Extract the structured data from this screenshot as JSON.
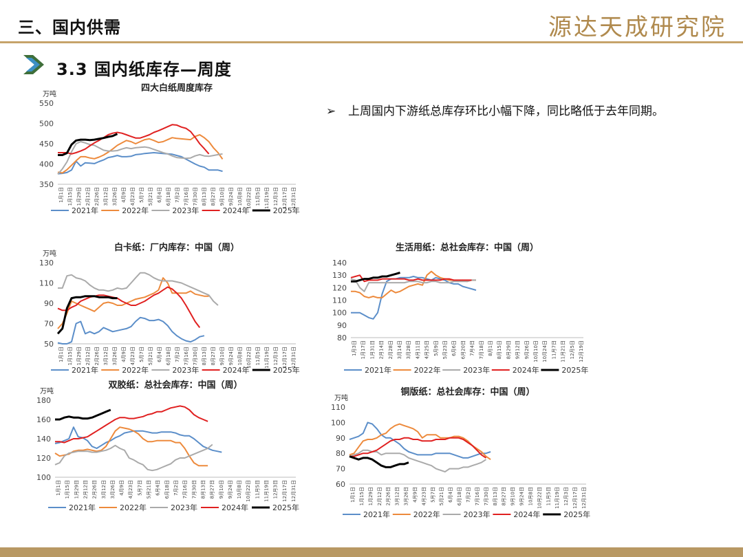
{
  "header": {
    "section_title": "三、国内供需",
    "brand": "源达天成研究院",
    "subtitle": "3.3 国内纸库存—周度"
  },
  "bullet": {
    "mark": "➢",
    "text": "上周国内下游纸总库存环比小幅下降，同比略低于去年同期。"
  },
  "colors": {
    "2021年": "#5b8ec9",
    "2022年": "#ed8a3c",
    "2023年": "#aaaaaa",
    "2024年": "#e02020",
    "2025年": "#000000",
    "accent": "#c6a36a"
  },
  "chart_data": [
    {
      "type": "line",
      "title": "四大白纸周度库存",
      "unit": "万吨",
      "ylim": [
        350,
        550
      ],
      "yticks": [
        350,
        400,
        450,
        500,
        550
      ],
      "xticks": [
        "1月1日",
        "1月15日",
        "1月29日",
        "2月12日",
        "2月26日",
        "3月12日",
        "3月26日",
        "4月9日",
        "4月23日",
        "5月7日",
        "5月21日",
        "6月4日",
        "6月18日",
        "7月2日",
        "7月16日",
        "7月30日",
        "8月13日",
        "8月27日",
        "9月10日",
        "9月24日",
        "10月8日",
        "10月22日",
        "11月5日",
        "11月19日",
        "12月3日",
        "12月17日",
        "12月31日"
      ],
      "series": [
        {
          "name": "2021年",
          "values": [
            376,
            377,
            379,
            385,
            407,
            395,
            403,
            402,
            401,
            406,
            410,
            416,
            418,
            421,
            418,
            418,
            419,
            423,
            424,
            426,
            427,
            428,
            427,
            426,
            425,
            424,
            421,
            418,
            412,
            406,
            400,
            395,
            392,
            385,
            385,
            385,
            382
          ]
        },
        {
          "name": "2022年",
          "values": [
            380,
            378,
            386,
            397,
            408,
            418,
            418,
            415,
            413,
            417,
            422,
            429,
            437,
            446,
            452,
            458,
            455,
            450,
            455,
            460,
            462,
            458,
            453,
            455,
            460,
            465,
            463,
            462,
            461,
            460,
            468,
            472,
            465,
            455,
            440,
            428,
            412
          ]
        },
        {
          "name": "2023年",
          "values": [
            375,
            388,
            405,
            430,
            450,
            455,
            452,
            448,
            446,
            440,
            434,
            432,
            432,
            433,
            437,
            440,
            438,
            440,
            441,
            442,
            440,
            436,
            432,
            428,
            425,
            420,
            416,
            415,
            414,
            415,
            420,
            423,
            420,
            419,
            421,
            423,
            425
          ]
        },
        {
          "name": "2024年",
          "values": [
            428,
            428,
            428,
            425,
            428,
            432,
            437,
            445,
            452,
            458,
            465,
            472,
            476,
            478,
            476,
            472,
            468,
            464,
            464,
            468,
            472,
            478,
            482,
            487,
            492,
            497,
            496,
            491,
            488,
            480,
            466,
            450,
            438,
            425
          ]
        },
        {
          "name": "2025年",
          "values": [
            422,
            422,
            427,
            448,
            458,
            460,
            460,
            459,
            460,
            462,
            464,
            467,
            469,
            474
          ]
        }
      ],
      "legend": "bottom"
    },
    {
      "type": "line",
      "title": "白卡纸：厂内库存：中国（周）",
      "unit": "万吨",
      "ylim": [
        50,
        130
      ],
      "yticks": [
        50,
        70,
        90,
        110,
        130
      ],
      "xticks": [
        "1月1日",
        "1月15日",
        "1月29日",
        "2月12日",
        "2月26日",
        "3月12日",
        "3月26日",
        "4月9日",
        "4月23日",
        "5月7日",
        "5月21日",
        "6月4日",
        "6月18日",
        "7月2日",
        "7月16日",
        "7月30日",
        "8月13日",
        "8月27日",
        "9月10日",
        "9月24日",
        "10月8日",
        "10月22日",
        "11月5日",
        "11月19日",
        "12月3日",
        "12月17日",
        "12月31日"
      ],
      "series": [
        {
          "name": "2021年",
          "values": [
            51,
            50,
            50,
            52,
            70,
            72,
            60,
            62,
            60,
            62,
            66,
            64,
            62,
            63,
            64,
            65,
            67,
            72,
            76,
            75,
            73,
            73,
            74,
            72,
            68,
            62,
            58,
            55,
            53,
            52,
            54,
            57,
            58
          ]
        },
        {
          "name": "2022年",
          "values": [
            65,
            70,
            80,
            92,
            90,
            88,
            86,
            84,
            82,
            86,
            90,
            91,
            90,
            88,
            88,
            90,
            92,
            94,
            95,
            96,
            98,
            100,
            103,
            115,
            110,
            100,
            100,
            100,
            100,
            102,
            99,
            98,
            97,
            97
          ]
        },
        {
          "name": "2023年",
          "values": [
            105,
            105,
            117,
            118,
            115,
            114,
            112,
            108,
            105,
            103,
            103,
            102,
            103,
            105,
            104,
            105,
            110,
            115,
            120,
            120,
            118,
            115,
            113,
            112,
            112,
            112,
            111,
            110,
            108,
            106,
            104,
            102,
            100,
            98,
            92,
            88
          ]
        },
        {
          "name": "2024年",
          "values": [
            85,
            83,
            83,
            86,
            88,
            92,
            94,
            96,
            97,
            98,
            98,
            97,
            96,
            95,
            92,
            90,
            88,
            88,
            90,
            92,
            95,
            98,
            100,
            103,
            106,
            104,
            100,
            95,
            88,
            80,
            72,
            66
          ]
        },
        {
          "name": "2025年",
          "values": [
            60,
            65,
            85,
            95,
            96,
            96,
            97,
            97,
            97,
            96,
            96,
            96,
            95,
            95
          ]
        }
      ],
      "legend": "bottom"
    },
    {
      "type": "line",
      "title": "生活用纸：总社会库存：中国（周）",
      "unit": "",
      "ylim": [
        80,
        140
      ],
      "yticks": [
        80,
        90,
        100,
        110,
        120,
        130,
        140
      ],
      "xticks": [
        "1月3日",
        "1月17日",
        "1月31日",
        "2月14日",
        "2月28日",
        "3月14日",
        "3月28日",
        "4月11日",
        "4月25日",
        "5月9日",
        "5月23日",
        "6月6日",
        "6月20日",
        "7月4日",
        "7月18日",
        "8月1日",
        "8月15日",
        "8月29日",
        "9月12日",
        "9月26日",
        "10月10日",
        "10月24日",
        "11月7日",
        "11月21日",
        "12月5日",
        "12月19日"
      ],
      "series": [
        {
          "name": "2021年",
          "values": [
            100,
            100,
            100,
            98,
            96,
            95,
            100,
            115,
            125,
            127,
            127,
            128,
            128,
            128,
            129,
            128,
            128,
            127,
            126,
            128,
            127,
            126,
            124,
            123,
            123,
            121,
            120,
            119,
            118
          ]
        },
        {
          "name": "2022年",
          "values": [
            117,
            117,
            116,
            113,
            112,
            113,
            112,
            112,
            115,
            118,
            116,
            117,
            119,
            121,
            122,
            123,
            122,
            130,
            133,
            130,
            128,
            127,
            126,
            126,
            125,
            126,
            125,
            126,
            126
          ]
        },
        {
          "name": "2023年",
          "values": [
            127,
            126,
            120,
            117,
            124,
            124,
            124,
            124,
            124,
            124,
            124,
            124,
            124,
            125,
            125,
            125,
            124,
            124,
            125,
            125,
            124,
            124,
            124,
            125,
            125,
            125,
            125,
            126,
            126
          ]
        },
        {
          "name": "2024年",
          "values": [
            128,
            129,
            130,
            125,
            126,
            126,
            126,
            127,
            127,
            127,
            127,
            127,
            127,
            126,
            126,
            127,
            126,
            126,
            126,
            126,
            126,
            127,
            127,
            126,
            126,
            126,
            126,
            126
          ]
        },
        {
          "name": "2025年",
          "values": [
            125,
            125,
            126,
            127,
            127,
            128,
            128,
            129,
            129,
            130,
            131,
            132
          ]
        }
      ],
      "legend": "bottom"
    },
    {
      "type": "line",
      "title": "双胶纸：总社会库存：中国（周）",
      "unit": "万吨",
      "ylim": [
        100,
        180
      ],
      "yticks": [
        100,
        120,
        140,
        160,
        180
      ],
      "xticks": [
        "1月1日",
        "1月15日",
        "1月29日",
        "2月12日",
        "2月26日",
        "3月12日",
        "3月26日",
        "4月9日",
        "4月23日",
        "5月7日",
        "5月21日",
        "6月4日",
        "6月18日",
        "7月2日",
        "7月16日",
        "7月30日",
        "8月13日",
        "8月27日",
        "9月10日",
        "9月24日",
        "10月8日",
        "10月22日",
        "11月5日",
        "11月19日",
        "12月3日",
        "12月17日",
        "12月31日"
      ],
      "series": [
        {
          "name": "2021年",
          "values": [
            135,
            136,
            138,
            140,
            152,
            142,
            141,
            138,
            132,
            130,
            133,
            136,
            138,
            141,
            143,
            146,
            147,
            148,
            148,
            148,
            147,
            146,
            146,
            147,
            147,
            147,
            146,
            144,
            143,
            143,
            140,
            136,
            132,
            130,
            128,
            127,
            126
          ]
        },
        {
          "name": "2022年",
          "values": [
            125,
            122,
            123,
            124,
            127,
            128,
            128,
            129,
            128,
            127,
            128,
            132,
            140,
            148,
            152,
            151,
            150,
            148,
            145,
            140,
            137,
            137,
            138,
            138,
            138,
            138,
            136,
            136,
            130,
            122,
            115,
            112,
            112,
            112
          ]
        },
        {
          "name": "2023年",
          "values": [
            113,
            115,
            122,
            125,
            126,
            127,
            127,
            127,
            126,
            126,
            127,
            128,
            130,
            133,
            130,
            128,
            120,
            118,
            115,
            113,
            108,
            107,
            108,
            110,
            112,
            114,
            118,
            120,
            120,
            122,
            124,
            126,
            128,
            130,
            134
          ]
        },
        {
          "name": "2024年",
          "values": [
            137,
            137,
            136,
            138,
            140,
            140,
            141,
            142,
            145,
            148,
            151,
            154,
            157,
            160,
            162,
            162,
            161,
            161,
            162,
            163,
            165,
            166,
            168,
            168,
            170,
            172,
            173,
            174,
            173,
            170,
            165,
            162,
            160,
            158
          ]
        },
        {
          "name": "2025年",
          "values": [
            160,
            160,
            162,
            163,
            162,
            162,
            161,
            161,
            162,
            164,
            166,
            168,
            170
          ]
        }
      ],
      "legend": "bottom"
    },
    {
      "type": "line",
      "title": "铜版纸：总社会库存：中国（周）",
      "unit": "万吨",
      "ylim": [
        60,
        110
      ],
      "yticks": [
        60,
        70,
        80,
        90,
        100,
        110
      ],
      "xticks": [
        "1月1日",
        "1月15日",
        "1月29日",
        "2月12日",
        "2月26日",
        "3月12日",
        "3月26日",
        "4月9日",
        "4月23日",
        "5月7日",
        "5月21日",
        "6月4日",
        "6月18日",
        "7月2日",
        "7月16日",
        "7月30日",
        "8月13日",
        "8月27日",
        "9月10日",
        "9月24日",
        "10月8日",
        "10月22日",
        "11月5日",
        "11月19日",
        "12月3日",
        "12月17日",
        "12月31日"
      ],
      "series": [
        {
          "name": "2021年",
          "values": [
            89,
            90,
            91,
            93,
            100,
            99,
            96,
            92,
            90,
            90,
            88,
            86,
            83,
            81,
            80,
            79,
            79,
            79,
            79,
            80,
            80,
            80,
            80,
            79,
            78,
            77,
            77,
            78,
            79,
            80,
            80,
            81
          ]
        },
        {
          "name": "2022年",
          "values": [
            79,
            80,
            84,
            88,
            89,
            89,
            90,
            92,
            93,
            96,
            98,
            99,
            98,
            97,
            96,
            94,
            90,
            92,
            92,
            92,
            90,
            90,
            90,
            91,
            91,
            90,
            88,
            85,
            83,
            81,
            78,
            76
          ]
        },
        {
          "name": "2023年",
          "values": [
            78,
            79,
            80,
            82,
            82,
            81,
            81,
            79,
            80,
            80,
            80,
            80,
            79,
            77,
            76,
            75,
            74,
            73,
            72,
            70,
            69,
            68,
            70,
            70,
            70,
            71,
            71,
            72,
            73,
            74,
            76
          ]
        },
        {
          "name": "2024年",
          "values": [
            78,
            78,
            79,
            80,
            80,
            81,
            82,
            84,
            86,
            88,
            89,
            89,
            90,
            90,
            89,
            89,
            88,
            88,
            88,
            89,
            89,
            89,
            90,
            90,
            90,
            89,
            87,
            85,
            82,
            79,
            77
          ]
        },
        {
          "name": "2025年",
          "values": [
            78,
            77,
            76,
            77,
            77,
            76,
            74,
            72,
            71,
            71,
            72,
            73,
            73,
            74
          ]
        }
      ],
      "legend": "bottom"
    }
  ]
}
